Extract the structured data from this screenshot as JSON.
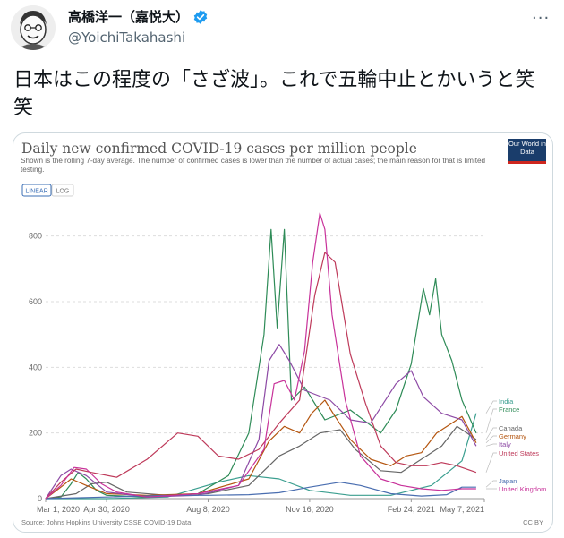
{
  "tweet": {
    "display_name": "高橋洋一（嘉悦大）",
    "handle": "@YoichiTakahashi",
    "more_icon": "more-dots-icon",
    "text": "日本はこの程度の「さざ波」。これで五輪中止とかいうと笑笑"
  },
  "chart_data": {
    "type": "line",
    "title": "Daily new confirmed COVID-19 cases per million people",
    "subtitle": "Shown is the rolling 7-day average. The number of confirmed cases is lower than the number of actual cases; the main reason for that is limited testing.",
    "logo": "Our World in Data",
    "buttons": [
      "LINEAR",
      "LOG"
    ],
    "active_button": "LINEAR",
    "x_ticks": [
      "Mar 1, 2020",
      "Apr 30, 2020",
      "Aug 8, 2020",
      "Nov 16, 2020",
      "Feb 24, 2021",
      "May 7, 2021"
    ],
    "x_range": [
      "2020-03-01",
      "2021-05-07"
    ],
    "y_ticks": [
      0,
      200,
      400,
      600,
      800
    ],
    "ylim": [
      0,
      900
    ],
    "grid": true,
    "legend_position": "right",
    "source": "Source: Johns Hopkins University CSSE COVID-19 Data",
    "license": "CC BY",
    "series": [
      {
        "name": "India",
        "color": "#3a9e8f",
        "points": [
          [
            0,
            0
          ],
          [
            60,
            0
          ],
          [
            120,
            5
          ],
          [
            170,
            50
          ],
          [
            200,
            70
          ],
          [
            230,
            60
          ],
          [
            260,
            25
          ],
          [
            300,
            10
          ],
          [
            340,
            10
          ],
          [
            380,
            40
          ],
          [
            410,
            115
          ],
          [
            424,
            260
          ]
        ]
      },
      {
        "name": "France",
        "color": "#2e8b57",
        "points": [
          [
            0,
            0
          ],
          [
            15,
            5
          ],
          [
            25,
            45
          ],
          [
            32,
            80
          ],
          [
            40,
            60
          ],
          [
            50,
            25
          ],
          [
            60,
            10
          ],
          [
            100,
            5
          ],
          [
            150,
            15
          ],
          [
            180,
            70
          ],
          [
            200,
            200
          ],
          [
            215,
            500
          ],
          [
            222,
            820
          ],
          [
            228,
            520
          ],
          [
            235,
            820
          ],
          [
            242,
            300
          ],
          [
            255,
            340
          ],
          [
            275,
            240
          ],
          [
            300,
            270
          ],
          [
            330,
            200
          ],
          [
            345,
            270
          ],
          [
            360,
            410
          ],
          [
            372,
            640
          ],
          [
            378,
            560
          ],
          [
            384,
            670
          ],
          [
            390,
            500
          ],
          [
            400,
            420
          ],
          [
            410,
            300
          ],
          [
            424,
            200
          ]
        ]
      },
      {
        "name": "Canada",
        "color": "#666666",
        "points": [
          [
            0,
            0
          ],
          [
            30,
            15
          ],
          [
            45,
            45
          ],
          [
            60,
            50
          ],
          [
            80,
            20
          ],
          [
            120,
            10
          ],
          [
            160,
            15
          ],
          [
            200,
            40
          ],
          [
            230,
            130
          ],
          [
            250,
            160
          ],
          [
            270,
            200
          ],
          [
            290,
            210
          ],
          [
            305,
            150
          ],
          [
            330,
            85
          ],
          [
            350,
            80
          ],
          [
            370,
            120
          ],
          [
            390,
            160
          ],
          [
            405,
            220
          ],
          [
            415,
            200
          ],
          [
            424,
            180
          ]
        ]
      },
      {
        "name": "Germany",
        "color": "#b4550f",
        "points": [
          [
            0,
            0
          ],
          [
            15,
            35
          ],
          [
            25,
            60
          ],
          [
            40,
            40
          ],
          [
            60,
            15
          ],
          [
            100,
            10
          ],
          [
            150,
            15
          ],
          [
            200,
            60
          ],
          [
            220,
            175
          ],
          [
            235,
            220
          ],
          [
            250,
            200
          ],
          [
            262,
            260
          ],
          [
            275,
            300
          ],
          [
            285,
            250
          ],
          [
            300,
            180
          ],
          [
            320,
            120
          ],
          [
            340,
            100
          ],
          [
            355,
            130
          ],
          [
            370,
            140
          ],
          [
            385,
            200
          ],
          [
            400,
            230
          ],
          [
            410,
            250
          ],
          [
            424,
            170
          ]
        ]
      },
      {
        "name": "Italy",
        "color": "#8d4aa5",
        "points": [
          [
            0,
            0
          ],
          [
            15,
            70
          ],
          [
            25,
            90
          ],
          [
            40,
            70
          ],
          [
            60,
            20
          ],
          [
            100,
            5
          ],
          [
            150,
            10
          ],
          [
            190,
            40
          ],
          [
            210,
            180
          ],
          [
            220,
            420
          ],
          [
            230,
            470
          ],
          [
            240,
            420
          ],
          [
            255,
            330
          ],
          [
            280,
            300
          ],
          [
            300,
            240
          ],
          [
            320,
            230
          ],
          [
            345,
            350
          ],
          [
            360,
            390
          ],
          [
            372,
            310
          ],
          [
            390,
            260
          ],
          [
            410,
            240
          ],
          [
            424,
            160
          ]
        ]
      },
      {
        "name": "United States",
        "color": "#be3a5a",
        "points": [
          [
            0,
            0
          ],
          [
            15,
            50
          ],
          [
            30,
            90
          ],
          [
            45,
            80
          ],
          [
            70,
            65
          ],
          [
            100,
            120
          ],
          [
            130,
            200
          ],
          [
            150,
            190
          ],
          [
            170,
            130
          ],
          [
            190,
            120
          ],
          [
            210,
            150
          ],
          [
            230,
            230
          ],
          [
            250,
            300
          ],
          [
            265,
            620
          ],
          [
            275,
            750
          ],
          [
            285,
            720
          ],
          [
            300,
            440
          ],
          [
            315,
            290
          ],
          [
            330,
            160
          ],
          [
            345,
            110
          ],
          [
            360,
            100
          ],
          [
            375,
            100
          ],
          [
            390,
            110
          ],
          [
            405,
            100
          ],
          [
            424,
            80
          ]
        ]
      },
      {
        "name": "Japan",
        "color": "#4a6eb0",
        "points": [
          [
            0,
            0
          ],
          [
            60,
            5
          ],
          [
            120,
            10
          ],
          [
            160,
            10
          ],
          [
            200,
            12
          ],
          [
            230,
            18
          ],
          [
            260,
            35
          ],
          [
            290,
            50
          ],
          [
            310,
            40
          ],
          [
            340,
            15
          ],
          [
            370,
            8
          ],
          [
            395,
            12
          ],
          [
            410,
            35
          ],
          [
            424,
            35
          ]
        ]
      },
      {
        "name": "United Kingdom",
        "color": "#c8329a",
        "points": [
          [
            0,
            0
          ],
          [
            15,
            40
          ],
          [
            28,
            95
          ],
          [
            40,
            90
          ],
          [
            55,
            45
          ],
          [
            70,
            20
          ],
          [
            100,
            5
          ],
          [
            150,
            15
          ],
          [
            190,
            40
          ],
          [
            215,
            150
          ],
          [
            225,
            350
          ],
          [
            235,
            360
          ],
          [
            245,
            300
          ],
          [
            255,
            450
          ],
          [
            263,
            720
          ],
          [
            270,
            870
          ],
          [
            275,
            820
          ],
          [
            282,
            560
          ],
          [
            295,
            300
          ],
          [
            310,
            130
          ],
          [
            330,
            60
          ],
          [
            350,
            40
          ],
          [
            370,
            30
          ],
          [
            390,
            25
          ],
          [
            410,
            30
          ],
          [
            424,
            30
          ]
        ]
      }
    ]
  }
}
